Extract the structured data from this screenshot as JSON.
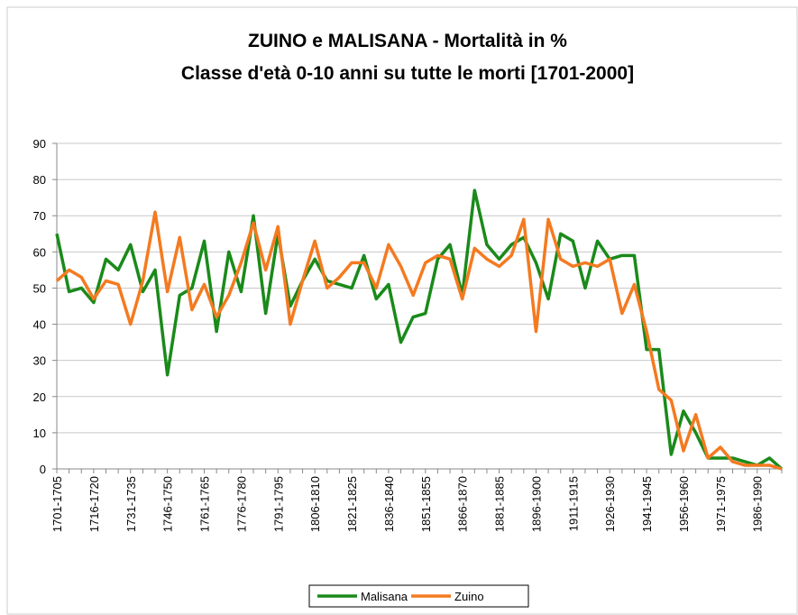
{
  "chart_data": {
    "type": "line",
    "title": [
      "ZUINO e MALISANA - Mortalità in %",
      "Classe d'età 0-10 anni su tutte le morti [1701-2000]"
    ],
    "categories": [
      "1701-1705",
      null,
      null,
      "1716-1720",
      null,
      null,
      "1731-1735",
      null,
      null,
      "1746-1750",
      null,
      null,
      "1761-1765",
      null,
      null,
      "1776-1780",
      null,
      null,
      "1791-1795",
      null,
      null,
      "1806-1810",
      null,
      null,
      "1821-1825",
      null,
      null,
      "1836-1840",
      null,
      null,
      "1851-1855",
      null,
      null,
      "1866-1870",
      null,
      null,
      "1881-1885",
      null,
      null,
      "1896-1900",
      null,
      null,
      "1911-1915",
      null,
      null,
      "1926-1930",
      null,
      null,
      "1941-1945",
      null,
      null,
      "1956-1960",
      null,
      null,
      "1971-1975",
      null,
      null,
      "1986-1990",
      null,
      null
    ],
    "series": [
      {
        "name": "Malisana",
        "color": "#1a8a1a",
        "values": [
          65,
          49,
          50,
          46,
          58,
          55,
          62,
          49,
          55,
          26,
          48,
          50,
          63,
          38,
          60,
          49,
          70,
          43,
          65,
          45,
          52,
          58,
          52,
          51,
          50,
          59,
          47,
          51,
          35,
          42,
          43,
          58,
          62,
          48,
          77,
          62,
          58,
          62,
          64,
          57,
          47,
          65,
          63,
          50,
          63,
          58,
          59,
          59,
          33,
          33,
          4,
          16,
          10,
          3,
          3,
          3,
          2,
          1,
          3,
          0
        ]
      },
      {
        "name": "Zuino",
        "color": "#f47a20",
        "values": [
          52,
          55,
          53,
          47,
          52,
          51,
          40,
          52,
          71,
          49,
          64,
          44,
          51,
          42,
          48,
          57,
          68,
          55,
          67,
          40,
          52,
          63,
          50,
          53,
          57,
          57,
          50,
          62,
          56,
          48,
          57,
          59,
          58,
          47,
          61,
          58,
          56,
          59,
          69,
          38,
          69,
          58,
          56,
          57,
          56,
          58,
          43,
          51,
          38,
          22,
          19,
          5,
          15,
          3,
          6,
          2,
          1,
          1,
          1,
          0
        ]
      }
    ],
    "ylim": [
      0,
      90
    ],
    "yticks": [
      0,
      10,
      20,
      30,
      40,
      50,
      60,
      70,
      80,
      90
    ],
    "grid": true,
    "legend": "bottom"
  }
}
